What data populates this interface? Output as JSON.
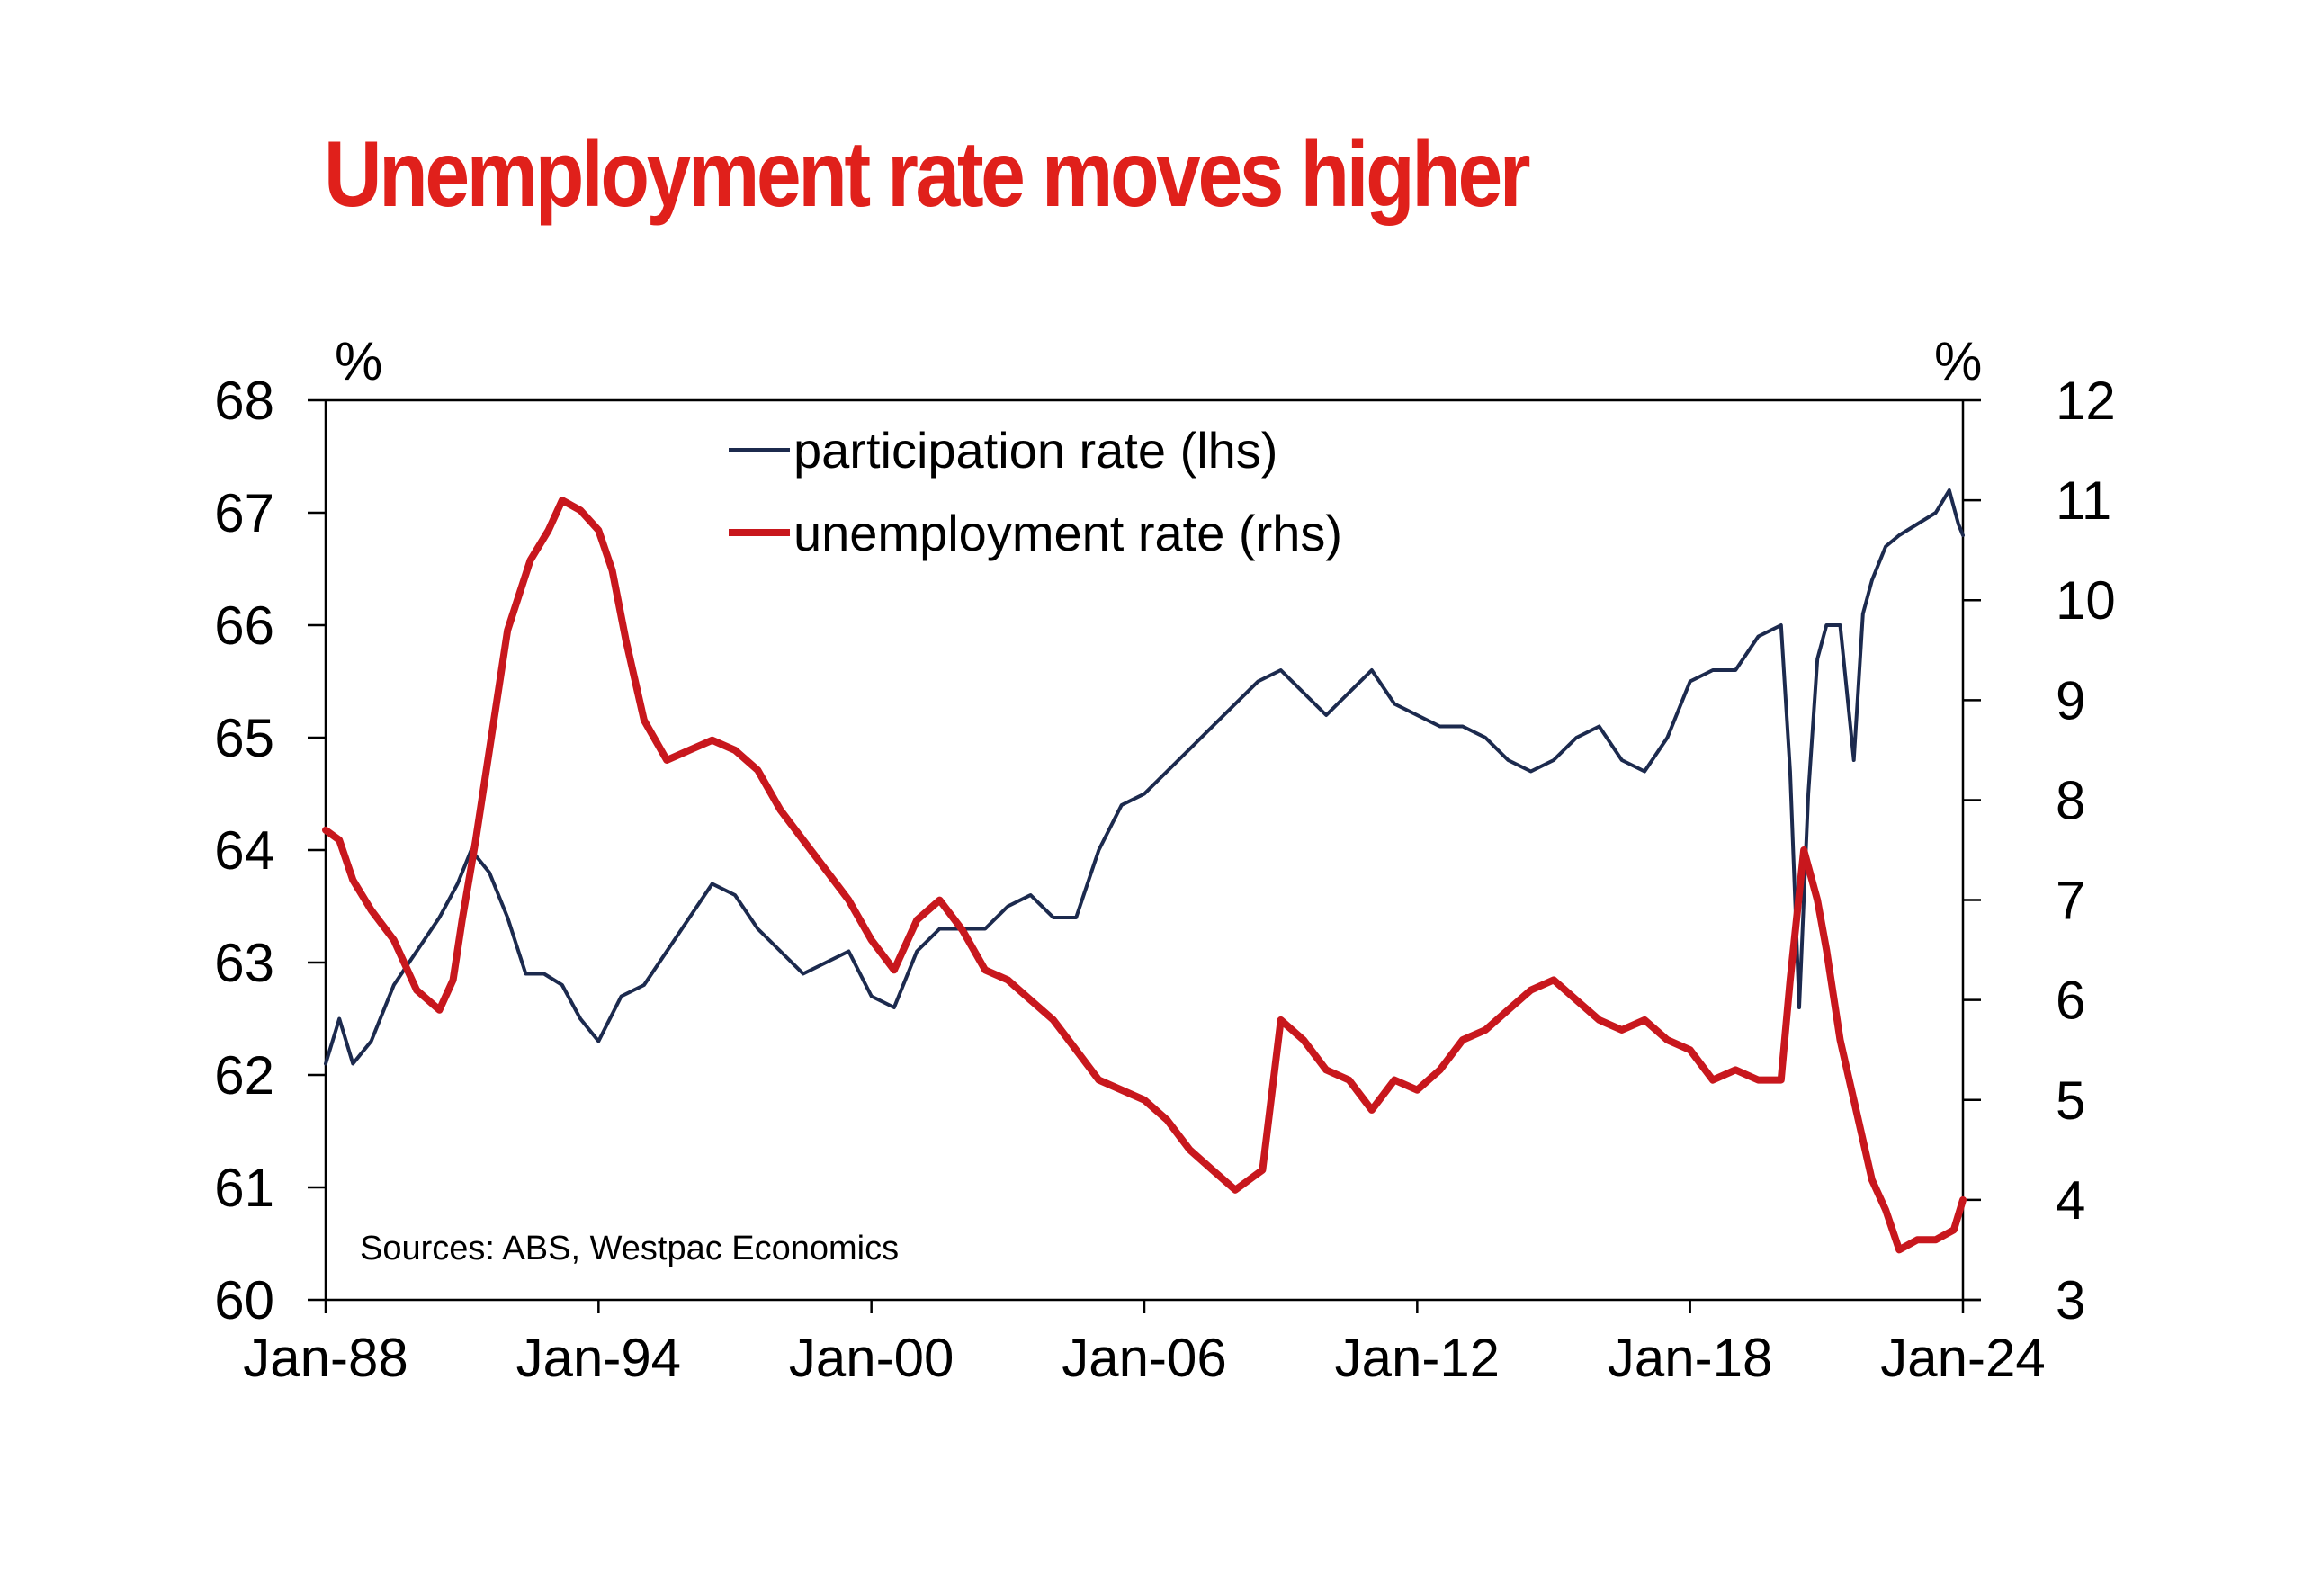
{
  "title": "Unemployment rate moves higher",
  "chart_data": {
    "type": "line",
    "title": "Unemployment rate moves higher",
    "y_left_unit": "%",
    "y_right_unit": "%",
    "ylim_left": [
      60,
      68
    ],
    "ylim_right": [
      3,
      12
    ],
    "y_left_ticks": [
      "60",
      "61",
      "62",
      "63",
      "64",
      "65",
      "66",
      "67",
      "68"
    ],
    "y_right_ticks": [
      "3",
      "4",
      "5",
      "6",
      "7",
      "8",
      "9",
      "10",
      "11",
      "12"
    ],
    "x_ticks": [
      "Jan-88",
      "Jan-94",
      "Jan-00",
      "Jan-06",
      "Jan-12",
      "Jan-18",
      "Jan-24"
    ],
    "xlim": [
      1988.0,
      2024.0
    ],
    "source": "Sources: ABS, Westpac Economics",
    "legend_position": "top-center",
    "grid": false,
    "series": [
      {
        "name": "participation rate (lhs)",
        "axis": "left",
        "color": "#1c2a4e",
        "x": [
          1988.0,
          1988.3,
          1988.6,
          1989.0,
          1989.5,
          1990.0,
          1990.5,
          1990.9,
          1991.2,
          1991.6,
          1992.0,
          1992.4,
          1992.8,
          1993.2,
          1993.6,
          1994.0,
          1994.5,
          1995.0,
          1995.5,
          1996.0,
          1996.5,
          1997.0,
          1997.5,
          1998.0,
          1998.5,
          1999.0,
          1999.5,
          2000.0,
          2000.5,
          2001.0,
          2001.5,
          2002.0,
          2002.5,
          2003.0,
          2003.5,
          2004.0,
          2004.5,
          2005.0,
          2005.5,
          2006.0,
          2006.5,
          2007.0,
          2007.5,
          2008.0,
          2008.5,
          2009.0,
          2009.5,
          2010.0,
          2010.5,
          2011.0,
          2011.5,
          2012.0,
          2012.5,
          2013.0,
          2013.5,
          2014.0,
          2014.5,
          2015.0,
          2015.5,
          2016.0,
          2016.5,
          2017.0,
          2017.5,
          2018.0,
          2018.5,
          2019.0,
          2019.5,
          2020.0,
          2020.2,
          2020.4,
          2020.6,
          2020.8,
          2021.0,
          2021.3,
          2021.6,
          2021.8,
          2022.0,
          2022.3,
          2022.6,
          2023.0,
          2023.4,
          2023.7,
          2023.9,
          2024.0
        ],
        "values": [
          62.1,
          62.5,
          62.1,
          62.3,
          62.8,
          63.1,
          63.4,
          63.7,
          64.0,
          63.8,
          63.4,
          62.9,
          62.9,
          62.8,
          62.5,
          62.3,
          62.7,
          62.8,
          63.1,
          63.4,
          63.7,
          63.6,
          63.3,
          63.1,
          62.9,
          63.0,
          63.1,
          62.7,
          62.6,
          63.1,
          63.3,
          63.3,
          63.3,
          63.5,
          63.6,
          63.4,
          63.4,
          64.0,
          64.4,
          64.5,
          64.7,
          64.9,
          65.1,
          65.3,
          65.5,
          65.6,
          65.4,
          65.2,
          65.4,
          65.6,
          65.3,
          65.2,
          65.1,
          65.1,
          65.0,
          64.8,
          64.7,
          64.8,
          65.0,
          65.1,
          64.8,
          64.7,
          65.0,
          65.5,
          65.6,
          65.6,
          65.9,
          66.0,
          64.7,
          62.6,
          64.5,
          65.7,
          66.0,
          66.0,
          64.8,
          66.1,
          66.4,
          66.7,
          66.8,
          66.9,
          67.0,
          67.2,
          66.9,
          66.8
        ]
      },
      {
        "name": "unemployment rate (rhs)",
        "axis": "right",
        "color": "#c8171d",
        "x": [
          1988.0,
          1988.3,
          1988.6,
          1989.0,
          1989.5,
          1990.0,
          1990.5,
          1990.8,
          1991.0,
          1991.3,
          1991.6,
          1992.0,
          1992.5,
          1992.9,
          1993.2,
          1993.6,
          1994.0,
          1994.3,
          1994.6,
          1995.0,
          1995.5,
          1996.0,
          1996.5,
          1997.0,
          1997.5,
          1998.0,
          1998.5,
          1999.0,
          1999.5,
          2000.0,
          2000.5,
          2001.0,
          2001.5,
          2002.0,
          2002.5,
          2003.0,
          2003.5,
          2004.0,
          2004.5,
          2005.0,
          2005.5,
          2006.0,
          2006.5,
          2007.0,
          2007.5,
          2008.0,
          2008.3,
          2008.6,
          2009.0,
          2009.5,
          2010.0,
          2010.5,
          2011.0,
          2011.5,
          2012.0,
          2012.5,
          2013.0,
          2013.5,
          2014.0,
          2014.5,
          2015.0,
          2015.5,
          2016.0,
          2016.5,
          2017.0,
          2017.5,
          2018.0,
          2018.5,
          2019.0,
          2019.5,
          2020.0,
          2020.2,
          2020.5,
          2020.8,
          2021.0,
          2021.3,
          2021.6,
          2021.8,
          2022.0,
          2022.3,
          2022.6,
          2023.0,
          2023.4,
          2023.8,
          2024.0
        ],
        "values": [
          7.7,
          7.6,
          7.2,
          6.9,
          6.6,
          6.1,
          5.9,
          6.2,
          6.8,
          7.6,
          8.5,
          9.7,
          10.4,
          10.7,
          11.0,
          10.9,
          10.7,
          10.3,
          9.6,
          8.8,
          8.4,
          8.5,
          8.6,
          8.5,
          8.3,
          7.9,
          7.6,
          7.3,
          7.0,
          6.6,
          6.3,
          6.8,
          7.0,
          6.7,
          6.3,
          6.2,
          6.0,
          5.8,
          5.5,
          5.2,
          5.1,
          5.0,
          4.8,
          4.5,
          4.3,
          4.1,
          4.2,
          4.3,
          5.8,
          5.6,
          5.3,
          5.2,
          4.9,
          5.2,
          5.1,
          5.3,
          5.6,
          5.7,
          5.9,
          6.1,
          6.2,
          6.0,
          5.8,
          5.7,
          5.8,
          5.6,
          5.5,
          5.2,
          5.3,
          5.2,
          5.2,
          6.2,
          7.5,
          7.0,
          6.5,
          5.6,
          5.0,
          4.6,
          4.2,
          3.9,
          3.5,
          3.6,
          3.6,
          3.7,
          4.0
        ]
      }
    ]
  }
}
